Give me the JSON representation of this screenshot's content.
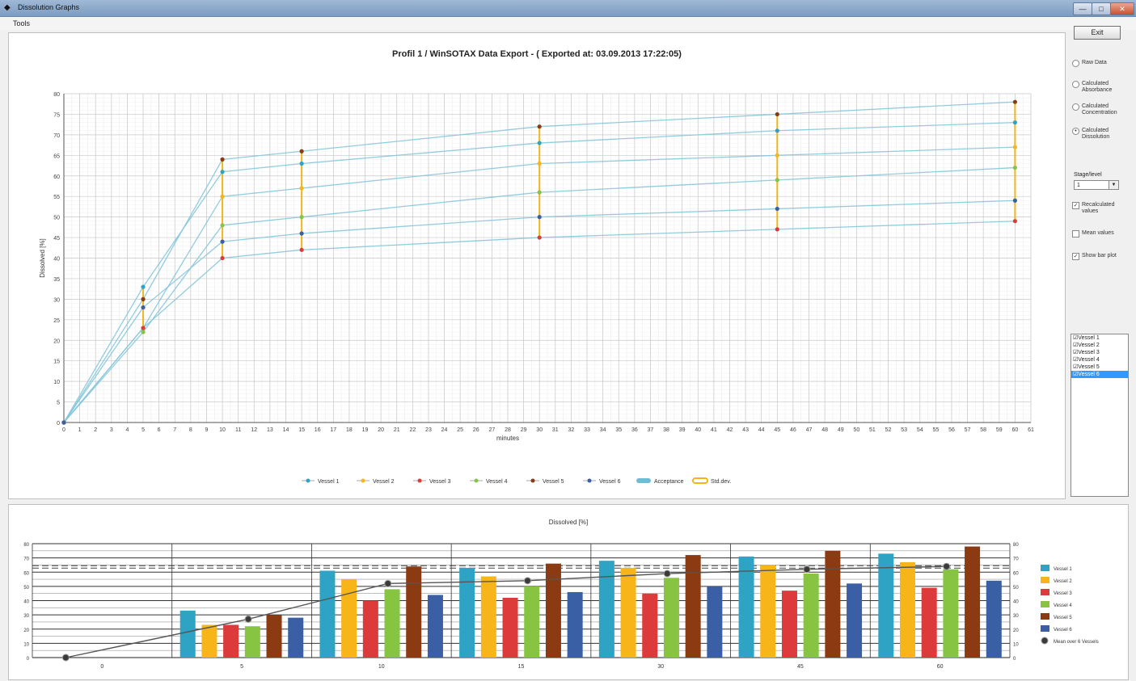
{
  "window": {
    "title": "Dissolution Graphs",
    "minimize_label": "—",
    "maximize_label": "□",
    "close_label": "✕"
  },
  "menu": {
    "tools_label": "Tools"
  },
  "top_chart": {
    "title": "Profil 1 / WinSOTAX Data Export - ( Exported at: 03.09.2013 17:22:05)",
    "ylabel": "Dissolved [%]",
    "xlabel": "minutes",
    "legend": [
      "Vessel 1",
      "Vessel 2",
      "Vessel 3",
      "Vessel 4",
      "Vessel 5",
      "Vessel 6",
      "Acceptance",
      "Std.dev."
    ]
  },
  "bottom_chart": {
    "title": "Dissolved [%]",
    "legend": [
      "Vessel 1",
      "Vessel 2",
      "Vessel 3",
      "Vessel 4",
      "Vessel 5",
      "Vessel 6",
      "Mean over 6 Vessels"
    ]
  },
  "options": {
    "exit_label": "Exit",
    "radios": [
      "Raw Data",
      "Calculated Absorbance",
      "Calculated Concentration",
      "Calculated Dissolution"
    ],
    "selected_radio": 3,
    "stage_label": "Stage/level",
    "stage_value": "1",
    "checks": [
      {
        "label": "Recalculated values",
        "checked": true
      },
      {
        "label": "Mean values",
        "checked": false
      },
      {
        "label": "Show bar plot",
        "checked": true
      }
    ],
    "vessels": [
      {
        "label": "Vessel 1",
        "checked": true
      },
      {
        "label": "Vessel 2",
        "checked": true
      },
      {
        "label": "Vessel 3",
        "checked": true
      },
      {
        "label": "Vessel 4",
        "checked": true
      },
      {
        "label": "Vessel 5",
        "checked": true
      },
      {
        "label": "Vessel 6",
        "checked": true
      }
    ],
    "selected_vessel": 5
  },
  "colors": {
    "v1": "#2fa3c3",
    "v2": "#f7b51a",
    "v3": "#dd3b3b",
    "v4": "#86c441",
    "v5": "#8b3a12",
    "v6": "#3a5fa5",
    "line": "#86c6dc",
    "stddev": "#f2b51c",
    "mean": "#555555"
  },
  "chart_data": [
    {
      "type": "line",
      "title": "Profil 1 / WinSOTAX Data Export - ( Exported at: 03.09.2013 17:22:05)",
      "xlabel": "minutes",
      "ylabel": "Dissolved [%]",
      "xlim": [
        0,
        61
      ],
      "ylim": [
        0,
        80
      ],
      "x": [
        0,
        5,
        10,
        15,
        30,
        45,
        60
      ],
      "series": [
        {
          "name": "Vessel 1",
          "values": [
            0,
            33,
            61,
            63,
            68,
            71,
            73
          ]
        },
        {
          "name": "Vessel 2",
          "values": [
            0,
            23,
            55,
            57,
            63,
            65,
            67
          ]
        },
        {
          "name": "Vessel 3",
          "values": [
            0,
            23,
            40,
            42,
            45,
            47,
            49
          ]
        },
        {
          "name": "Vessel 4",
          "values": [
            0,
            22,
            48,
            50,
            56,
            59,
            62
          ]
        },
        {
          "name": "Vessel 5",
          "values": [
            0,
            30,
            64,
            66,
            72,
            75,
            78
          ]
        },
        {
          "name": "Vessel 6",
          "values": [
            0,
            28,
            44,
            46,
            50,
            52,
            54
          ]
        }
      ],
      "legend": "bottom",
      "grid": true
    },
    {
      "type": "bar",
      "title": "Dissolved [%]",
      "categories": [
        "0",
        "5",
        "10",
        "15",
        "30",
        "45",
        "60"
      ],
      "ylim": [
        0,
        80
      ],
      "series": [
        {
          "name": "Vessel 1",
          "values": [
            0,
            33,
            61,
            63,
            68,
            71,
            73
          ]
        },
        {
          "name": "Vessel 2",
          "values": [
            0,
            23,
            55,
            57,
            63,
            65,
            67
          ]
        },
        {
          "name": "Vessel 3",
          "values": [
            0,
            23,
            40,
            42,
            45,
            47,
            49
          ]
        },
        {
          "name": "Vessel 4",
          "values": [
            0,
            22,
            48,
            50,
            56,
            59,
            62
          ]
        },
        {
          "name": "Vessel 5",
          "values": [
            0,
            30,
            64,
            66,
            72,
            75,
            78
          ]
        },
        {
          "name": "Vessel 6",
          "values": [
            0,
            28,
            44,
            46,
            50,
            52,
            54
          ]
        },
        {
          "name": "Mean over 6 Vessels",
          "values": [
            0,
            27,
            52,
            54,
            59,
            62,
            64
          ]
        }
      ],
      "legend": "right",
      "grid": true
    }
  ]
}
